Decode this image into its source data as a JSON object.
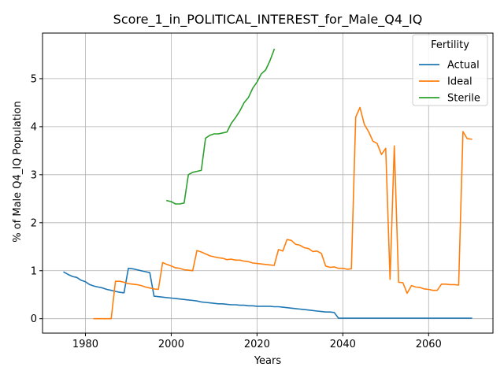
{
  "chart_data": {
    "type": "line",
    "title": "Score_1_in_POLITICAL_INTEREST_for_Male_Q4_IQ",
    "xlabel": "Years",
    "ylabel": "% of Male Q4_IQ Population",
    "xlim": [
      1970,
      2075
    ],
    "ylim": [
      -0.3,
      5.95
    ],
    "xticks": [
      1980,
      2000,
      2020,
      2040,
      2060
    ],
    "yticks": [
      0,
      1,
      2,
      3,
      4,
      5
    ],
    "grid": true,
    "legend": {
      "title": "Fertility",
      "placement": "top-right"
    },
    "series": [
      {
        "name": "Actual",
        "color": "#1f77b4",
        "x": [
          1975,
          1976,
          1977,
          1978,
          1979,
          1980,
          1981,
          1982,
          1983,
          1984,
          1985,
          1986,
          1987,
          1988,
          1989,
          1990,
          1991,
          1992,
          1993,
          1994,
          1995,
          1996,
          1997,
          1998,
          1999,
          2000,
          2001,
          2002,
          2003,
          2004,
          2005,
          2006,
          2007,
          2008,
          2009,
          2010,
          2011,
          2012,
          2013,
          2014,
          2015,
          2016,
          2017,
          2018,
          2019,
          2020,
          2021,
          2022,
          2023,
          2024,
          2025,
          2026,
          2027,
          2028,
          2029,
          2030,
          2031,
          2032,
          2033,
          2034,
          2035,
          2036,
          2037,
          2038,
          2039,
          2040,
          2045,
          2050,
          2055,
          2060,
          2065,
          2070
        ],
        "y": [
          0.97,
          0.92,
          0.88,
          0.86,
          0.8,
          0.77,
          0.71,
          0.68,
          0.66,
          0.64,
          0.61,
          0.59,
          0.57,
          0.55,
          0.54,
          1.05,
          1.04,
          1.02,
          1.0,
          0.98,
          0.96,
          0.47,
          0.46,
          0.45,
          0.44,
          0.43,
          0.42,
          0.41,
          0.4,
          0.39,
          0.38,
          0.37,
          0.35,
          0.34,
          0.33,
          0.32,
          0.31,
          0.31,
          0.3,
          0.29,
          0.29,
          0.28,
          0.28,
          0.27,
          0.27,
          0.26,
          0.26,
          0.26,
          0.26,
          0.25,
          0.25,
          0.24,
          0.23,
          0.22,
          0.21,
          0.2,
          0.19,
          0.18,
          0.17,
          0.16,
          0.15,
          0.14,
          0.14,
          0.13,
          0.01,
          0.01,
          0.01,
          0.01,
          0.01,
          0.01,
          0.01,
          0.01
        ]
      },
      {
        "name": "Ideal",
        "color": "#ff7f0e",
        "x": [
          1982,
          1983,
          1984,
          1985,
          1986,
          1987,
          1988,
          1989,
          1990,
          1991,
          1992,
          1993,
          1994,
          1995,
          1996,
          1997,
          1998,
          1999,
          2000,
          2001,
          2002,
          2003,
          2004,
          2005,
          2006,
          2007,
          2008,
          2009,
          2010,
          2011,
          2012,
          2013,
          2014,
          2015,
          2016,
          2017,
          2018,
          2019,
          2020,
          2021,
          2022,
          2023,
          2024,
          2025,
          2026,
          2027,
          2028,
          2029,
          2030,
          2031,
          2032,
          2033,
          2034,
          2035,
          2036,
          2037,
          2038,
          2039,
          2040,
          2041,
          2042,
          2043,
          2044,
          2045,
          2046,
          2047,
          2048,
          2049,
          2050,
          2051,
          2052,
          2053,
          2054,
          2055,
          2056,
          2057,
          2058,
          2059,
          2060,
          2061,
          2062,
          2063,
          2064,
          2065,
          2066,
          2067,
          2068,
          2069,
          2070
        ],
        "y": [
          0.0,
          0.0,
          0.0,
          0.0,
          0.0,
          0.78,
          0.78,
          0.76,
          0.73,
          0.72,
          0.71,
          0.69,
          0.66,
          0.64,
          0.62,
          0.61,
          1.17,
          1.13,
          1.1,
          1.06,
          1.05,
          1.02,
          1.01,
          1.0,
          1.42,
          1.39,
          1.35,
          1.31,
          1.29,
          1.27,
          1.26,
          1.23,
          1.24,
          1.22,
          1.22,
          1.2,
          1.19,
          1.16,
          1.15,
          1.14,
          1.13,
          1.12,
          1.11,
          1.44,
          1.41,
          1.65,
          1.63,
          1.55,
          1.53,
          1.48,
          1.46,
          1.4,
          1.41,
          1.36,
          1.1,
          1.07,
          1.08,
          1.05,
          1.05,
          1.03,
          1.04,
          4.2,
          4.4,
          4.05,
          3.9,
          3.7,
          3.65,
          3.42,
          3.55,
          0.82,
          3.6,
          0.76,
          0.75,
          0.53,
          0.69,
          0.66,
          0.65,
          0.62,
          0.61,
          0.59,
          0.59,
          0.72,
          0.72,
          0.71,
          0.71,
          0.7,
          3.9,
          3.75,
          3.74
        ]
      },
      {
        "name": "Sterile",
        "color": "#2ca02c",
        "x": [
          1999,
          2000,
          2001,
          2002,
          2003,
          2004,
          2005,
          2006,
          2007,
          2008,
          2009,
          2010,
          2011,
          2012,
          2013,
          2014,
          2015,
          2016,
          2017,
          2018,
          2019,
          2020,
          2021,
          2022,
          2023,
          2024
        ],
        "y": [
          2.46,
          2.44,
          2.39,
          2.39,
          2.41,
          3.0,
          3.05,
          3.07,
          3.09,
          3.76,
          3.82,
          3.85,
          3.85,
          3.87,
          3.89,
          4.07,
          4.19,
          4.33,
          4.5,
          4.61,
          4.8,
          4.93,
          5.1,
          5.18,
          5.37,
          5.61
        ]
      }
    ]
  }
}
